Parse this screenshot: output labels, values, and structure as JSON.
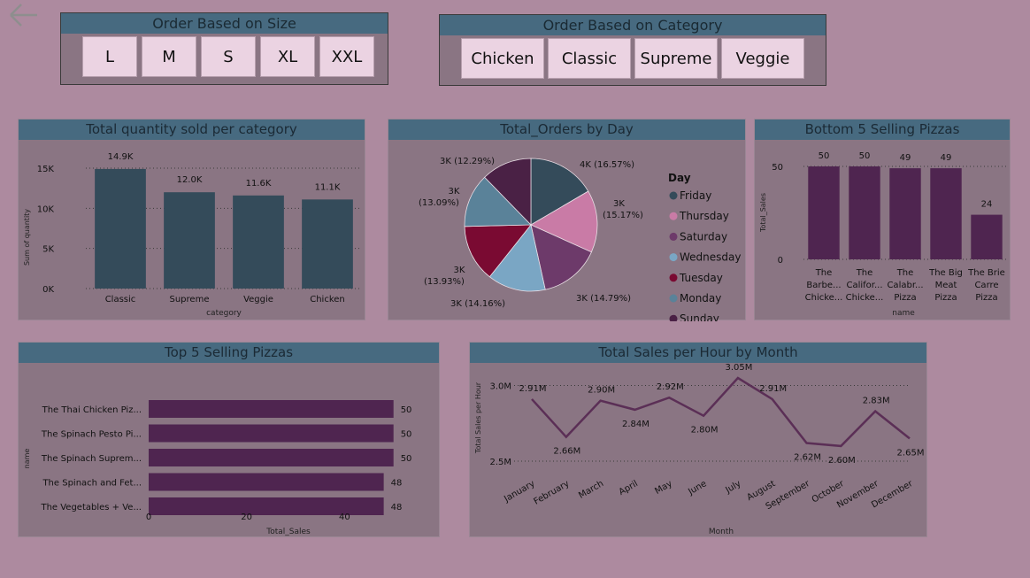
{
  "icons": {
    "back": "back-arrow-icon"
  },
  "colors": {
    "background": "#ad8a9f",
    "panel": "#8a7583",
    "header": "#476a80",
    "slate": "#344b5a",
    "purple": "#4f2550",
    "pie": [
      "#344b5a",
      "#c97ba6",
      "#6d3a6a",
      "#7aa6c4",
      "#7a0a32",
      "#5a8299",
      "#4a2145"
    ]
  },
  "size_slicer": {
    "title": "Order Based on Size",
    "options": [
      "L",
      "M",
      "S",
      "XL",
      "XXL"
    ]
  },
  "category_slicer": {
    "title": "Order Based on Category",
    "options": [
      "Chicken",
      "Classic",
      "Supreme",
      "Veggie"
    ]
  },
  "charts": {
    "category_qty": {
      "title": "Total quantity sold per category"
    },
    "orders_by_day": {
      "title": "Total_Orders by Day"
    },
    "bottom5": {
      "title": "Bottom 5 Selling Pizzas"
    },
    "top5": {
      "title": "Top 5 Selling Pizzas"
    },
    "sales_by_month": {
      "title": "Total Sales per Hour by Month"
    }
  },
  "chart_data": [
    {
      "id": "category_qty",
      "type": "bar",
      "title": "Total quantity sold per category",
      "xlabel": "category",
      "ylabel": "Sum of quantity",
      "categories": [
        "Classic",
        "Supreme",
        "Veggie",
        "Chicken"
      ],
      "values": [
        14900,
        12000,
        11600,
        11100
      ],
      "data_labels": [
        "14.9K",
        "12.0K",
        "11.6K",
        "11.1K"
      ],
      "yticks": [
        0,
        5000,
        10000,
        15000
      ],
      "ytick_labels": [
        "0K",
        "5K",
        "10K",
        "15K"
      ],
      "ylim": [
        0,
        15000
      ],
      "grid": true
    },
    {
      "id": "orders_by_day",
      "type": "pie",
      "title": "Total_Orders by Day",
      "legend_title": "Day",
      "legend_position": "right",
      "slices": [
        {
          "label": "Friday",
          "percent": 16.57,
          "text": "4K (16.57%)"
        },
        {
          "label": "Thursday",
          "percent": 15.17,
          "text": "3K (15.17%)"
        },
        {
          "label": "Saturday",
          "percent": 14.79,
          "text": "3K (14.79%)"
        },
        {
          "label": "Wednesday",
          "percent": 14.16,
          "text": "3K (14.16%)"
        },
        {
          "label": "Tuesday",
          "percent": 13.93,
          "text": "3K (13.93%)"
        },
        {
          "label": "Monday",
          "percent": 13.09,
          "text": "3K (13.09%)"
        },
        {
          "label": "Sunday",
          "percent": 12.29,
          "text": "3K (12.29%)"
        }
      ]
    },
    {
      "id": "bottom5",
      "type": "bar",
      "title": "Bottom 5 Selling Pizzas",
      "xlabel": "name",
      "ylabel": "Total_Sales",
      "categories": [
        "The Barbe... Chicke...",
        "The Califor... Chicke...",
        "The Calabr... Pizza",
        "The Big Meat Pizza",
        "The Brie Carre Pizza"
      ],
      "category_lines": [
        [
          "The",
          "Barbe...",
          "Chicke..."
        ],
        [
          "The",
          "Califor...",
          "Chicke..."
        ],
        [
          "The",
          "Calabr...",
          "Pizza"
        ],
        [
          "The Big",
          "Meat",
          "Pizza"
        ],
        [
          "The Brie",
          "Carre",
          "Pizza"
        ]
      ],
      "values": [
        50,
        50,
        49,
        49,
        24
      ],
      "yticks": [
        0,
        50
      ],
      "ylim": [
        0,
        50
      ],
      "grid": true
    },
    {
      "id": "top5",
      "type": "bar",
      "orientation": "horizontal",
      "title": "Top 5 Selling Pizzas",
      "xlabel": "Total_Sales",
      "ylabel": "name",
      "categories": [
        "The Thai Chicken Piz...",
        "The Spinach Pesto Pi...",
        "The Spinach Suprem...",
        "The Spinach and Fet...",
        "The Vegetables + Ve..."
      ],
      "values": [
        50,
        50,
        50,
        48,
        48
      ],
      "xticks": [
        0,
        20,
        40
      ],
      "xlim": [
        0,
        50
      ]
    },
    {
      "id": "sales_by_month",
      "type": "line",
      "title": "Total Sales per Hour by Month",
      "xlabel": "Month",
      "ylabel": "Total Sales per Hour",
      "categories": [
        "January",
        "February",
        "March",
        "April",
        "May",
        "June",
        "July",
        "August",
        "September",
        "October",
        "November",
        "December"
      ],
      "values": [
        2.91,
        2.66,
        2.9,
        2.84,
        2.92,
        2.8,
        3.05,
        2.91,
        2.62,
        2.6,
        2.83,
        2.65
      ],
      "data_labels": [
        "2.91M",
        "2.66M",
        "2.90M",
        "2.84M",
        "2.92M",
        "2.80M",
        "3.05M",
        "2.91M",
        "2.62M",
        "2.60M",
        "2.83M",
        "2.65M"
      ],
      "yticks": [
        2.5,
        3.0
      ],
      "ytick_labels": [
        "2.5M",
        "3.0M"
      ],
      "ylim": [
        2.5,
        3.05
      ],
      "grid": true
    }
  ]
}
